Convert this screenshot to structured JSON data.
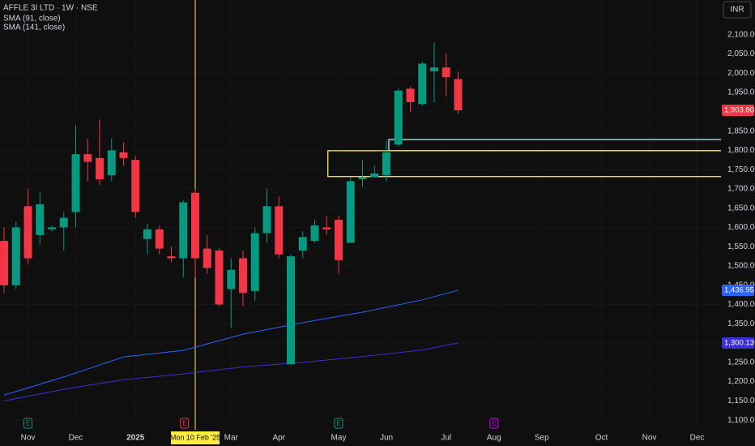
{
  "chart_data": {
    "type": "candlestick",
    "title": "AFFLE 3I LTD · 1W · NSE",
    "currency": "INR",
    "xlim": [
      -0.34,
      60
    ],
    "ylim": [
      1075,
      2190
    ],
    "grid": true,
    "up_color": "#089981",
    "down_color": "#f23645",
    "xticks": [
      {
        "value": 2,
        "label": "Nov"
      },
      {
        "value": 6,
        "label": "Dec"
      },
      {
        "value": 11,
        "label": "2025"
      },
      {
        "value": 19,
        "label": "Mar"
      },
      {
        "value": 23,
        "label": "Apr"
      },
      {
        "value": 28,
        "label": "May"
      },
      {
        "value": 32,
        "label": "Jun"
      },
      {
        "value": 37,
        "label": "Jul"
      },
      {
        "value": 41,
        "label": "Aug"
      },
      {
        "value": 45,
        "label": "Sep"
      },
      {
        "value": 50,
        "label": "Oct"
      },
      {
        "value": 54,
        "label": "Nov"
      },
      {
        "value": 58,
        "label": "Dec"
      }
    ],
    "yticks": [
      {
        "value": 1100,
        "label": "1,100.00"
      },
      {
        "value": 1150,
        "label": "1,150.00"
      },
      {
        "value": 1200,
        "label": "1,200.00"
      },
      {
        "value": 1250,
        "label": "1,250.00"
      },
      {
        "value": 1300,
        "label": "1,300.00"
      },
      {
        "value": 1350,
        "label": "1,350.00"
      },
      {
        "value": 1400,
        "label": "1,400.00"
      },
      {
        "value": 1450,
        "label": "1,450.00"
      },
      {
        "value": 1500,
        "label": "1,500.00"
      },
      {
        "value": 1550,
        "label": "1,550.00"
      },
      {
        "value": 1600,
        "label": "1,600.00"
      },
      {
        "value": 1650,
        "label": "1,650.00"
      },
      {
        "value": 1700,
        "label": "1,700.00"
      },
      {
        "value": 1750,
        "label": "1,750.00"
      },
      {
        "value": 1800,
        "label": "1,800.00"
      },
      {
        "value": 1850,
        "label": "1,850.00"
      },
      {
        "value": 1900,
        "label": "1,900.00"
      },
      {
        "value": 1950,
        "label": "1,950.00"
      },
      {
        "value": 2000,
        "label": "2,000.00"
      },
      {
        "value": 2050,
        "label": "2,050.00"
      },
      {
        "value": 2100,
        "label": "2,100.00"
      }
    ],
    "candles": {
      "x": [
        0,
        1,
        2,
        3,
        4,
        5,
        6,
        7,
        8,
        9,
        10,
        11,
        12,
        13,
        14,
        15,
        16,
        17,
        18,
        19,
        20,
        21,
        22,
        23,
        24,
        25,
        26,
        27,
        28,
        29,
        30,
        31,
        32,
        33,
        34,
        35,
        36,
        37,
        38
      ],
      "open": [
        1565,
        1450,
        1655,
        1580,
        1595,
        1600,
        1640,
        1790,
        1780,
        1735,
        1795,
        1775,
        1570,
        1595,
        1525,
        1520,
        1690,
        1545,
        1540,
        1440,
        1520,
        1435,
        1585,
        1655,
        1245,
        1540,
        1565,
        1600,
        1620,
        1560,
        1725,
        1730,
        1735,
        1815,
        1960,
        1920,
        2005,
        2015,
        1985
      ],
      "high": [
        1600,
        1615,
        1700,
        1690,
        1605,
        1640,
        1865,
        1830,
        1880,
        1830,
        1820,
        1785,
        1610,
        1605,
        1550,
        1670,
        1700,
        1580,
        1545,
        1520,
        1540,
        1600,
        1700,
        1680,
        1530,
        1590,
        1620,
        1630,
        1630,
        1730,
        1775,
        1760,
        1825,
        1960,
        1965,
        2030,
        2080,
        2050,
        2005
      ],
      "low": [
        1430,
        1440,
        1505,
        1555,
        1590,
        1540,
        1600,
        1720,
        1710,
        1720,
        1760,
        1625,
        1530,
        1530,
        1510,
        1470,
        1470,
        1480,
        1395,
        1340,
        1395,
        1410,
        1560,
        1520,
        1245,
        1520,
        1560,
        1580,
        1480,
        1560,
        1705,
        1730,
        1720,
        1810,
        1900,
        1915,
        1925,
        1940,
        1895
      ],
      "close": [
        1450,
        1600,
        1520,
        1660,
        1600,
        1625,
        1790,
        1770,
        1725,
        1800,
        1780,
        1640,
        1595,
        1545,
        1520,
        1665,
        1520,
        1495,
        1400,
        1490,
        1430,
        1585,
        1655,
        1530,
        1525,
        1575,
        1605,
        1595,
        1515,
        1720,
        1730,
        1740,
        1795,
        1955,
        1925,
        2025,
        2015,
        1990,
        1903.8
      ],
      "close_label": "1,903.80"
    },
    "series": [
      {
        "name": "SMA (91, close)",
        "color": "#2962ff",
        "x": [
          0,
          5,
          10,
          15,
          20,
          25,
          30,
          35,
          38
        ],
        "values": [
          1165,
          1212,
          1264,
          1281,
          1323,
          1353,
          1380,
          1412,
          1436.95
        ],
        "last_label": "1,436.95"
      },
      {
        "name": "SMA (141, close)",
        "color": "#3a2fd8",
        "x": [
          0,
          5,
          10,
          15,
          20,
          25,
          30,
          35,
          38
        ],
        "values": [
          1150,
          1180,
          1205,
          1220,
          1238,
          1250,
          1265,
          1282,
          1300.13
        ],
        "last_label": "1,300.13"
      }
    ],
    "zones": [
      {
        "x": 32.2,
        "ylim": [
          1799,
          1828
        ],
        "color": "#b2ebf2"
      },
      {
        "x": 27.1,
        "ylim": [
          1732,
          1799
        ],
        "color": "#ffeb3b"
      }
    ],
    "crosshair": {
      "x": 16,
      "label": "Mon 10 Feb '25",
      "color": "#ffeb3b"
    },
    "events": [
      {
        "x": 2,
        "label": "E",
        "color": "#089981"
      },
      {
        "x": 15.1,
        "label": "E",
        "color": "#f23645"
      },
      {
        "x": 28,
        "label": "E",
        "color": "#089981"
      },
      {
        "x": 41,
        "label": "E",
        "color": "#d500f9"
      }
    ]
  }
}
